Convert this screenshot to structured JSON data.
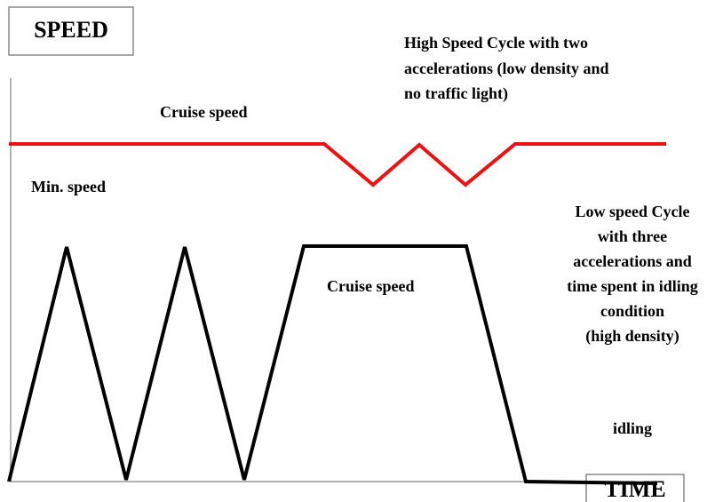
{
  "axes": {
    "y_label": "SPEED",
    "x_label": "TIME"
  },
  "high_speed_cycle": {
    "description": [
      "High Speed Cycle with two",
      "accelerations (low density and",
      "no traffic light)"
    ],
    "cruise_label": "Cruise speed",
    "min_label": "Min. speed"
  },
  "low_speed_cycle": {
    "description": [
      "Low speed Cycle",
      "with three",
      "accelerations and",
      "time spent in  idling",
      "condition",
      "(high density)"
    ],
    "cruise_label": "Cruise speed",
    "idling_label": "idling"
  }
}
